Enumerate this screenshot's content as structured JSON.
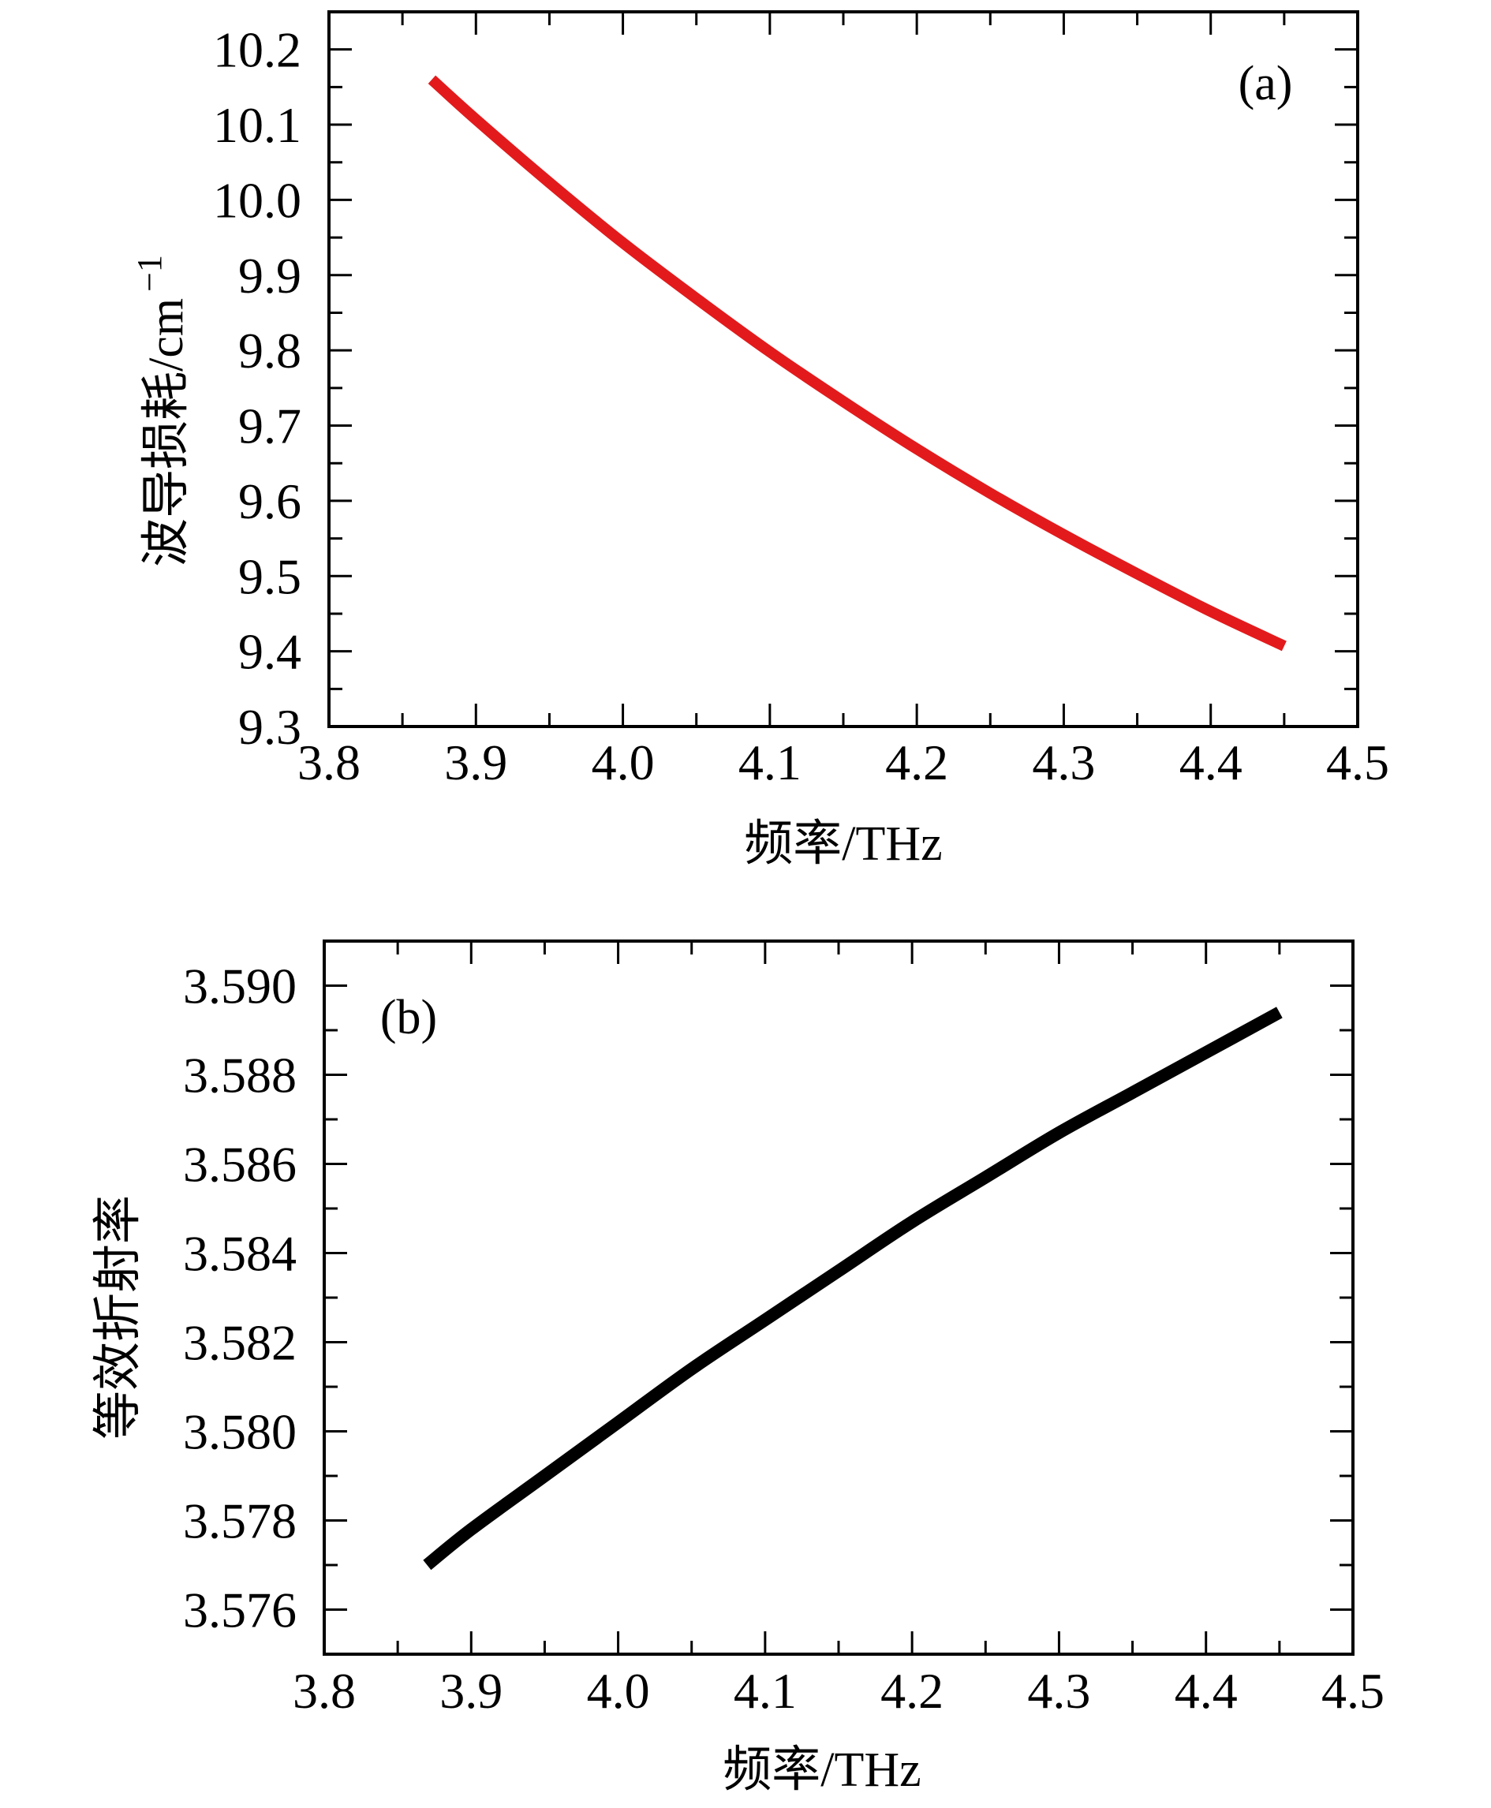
{
  "chart_data": [
    {
      "type": "line",
      "panel_label": "(a)",
      "xlabel": "频率/THz",
      "ylabel": "波导损耗/cm",
      "ylabel_superscript": "−1",
      "xlim": [
        3.8,
        4.5
      ],
      "ylim": [
        9.3,
        10.25
      ],
      "xticks": [
        "3.8",
        "3.9",
        "4.0",
        "4.1",
        "4.2",
        "4.3",
        "4.4",
        "4.5"
      ],
      "yticks": [
        "9.3",
        "9.4",
        "9.5",
        "9.6",
        "9.7",
        "9.8",
        "9.9",
        "10.0",
        "10.1",
        "10.2"
      ],
      "grid": false,
      "series": [
        {
          "color": "#e31a1c",
          "x": [
            3.87,
            3.9,
            3.95,
            4.0,
            4.05,
            4.1,
            4.15,
            4.2,
            4.25,
            4.3,
            4.35,
            4.4,
            4.45
          ],
          "y": [
            10.16,
            10.107,
            10.023,
            9.943,
            9.869,
            9.798,
            9.732,
            9.669,
            9.61,
            9.555,
            9.503,
            9.453,
            9.407
          ]
        }
      ]
    },
    {
      "type": "line",
      "panel_label": "(b)",
      "xlabel": "频率/THz",
      "ylabel": "等效折射率",
      "xlim": [
        3.8,
        4.5
      ],
      "ylim": [
        3.575,
        3.591
      ],
      "xticks": [
        "3.8",
        "3.9",
        "4.0",
        "4.1",
        "4.2",
        "4.3",
        "4.4",
        "4.5"
      ],
      "yticks": [
        "3.576",
        "3.578",
        "3.580",
        "3.582",
        "3.584",
        "3.586",
        "3.588",
        "3.590"
      ],
      "grid": false,
      "series": [
        {
          "color": "#000000",
          "x": [
            3.87,
            3.9,
            3.95,
            4.0,
            4.05,
            4.1,
            4.15,
            4.2,
            4.25,
            4.3,
            4.35,
            4.4,
            4.45
          ],
          "y": [
            3.577,
            3.5778,
            3.579,
            3.5802,
            3.5814,
            3.5825,
            3.5836,
            3.5847,
            3.5857,
            3.5867,
            3.5876,
            3.5885,
            3.5894
          ]
        }
      ]
    }
  ]
}
